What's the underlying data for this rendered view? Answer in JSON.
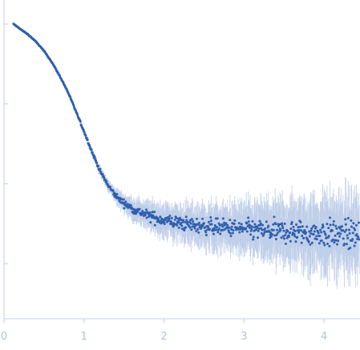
{
  "chart_data": {
    "type": "scatter",
    "title": "",
    "xlabel": "",
    "ylabel": "",
    "xlim": [
      0,
      4.45
    ],
    "y_scale": "log",
    "y_ticks_labeled": false,
    "x_ticks": [
      {
        "value": 0,
        "label": "0"
      },
      {
        "value": 1,
        "label": "1"
      },
      {
        "value": 2,
        "label": "2"
      },
      {
        "value": 3,
        "label": "3"
      },
      {
        "value": 4,
        "label": "4"
      }
    ],
    "y_tick_positions": [
      1,
      0.1,
      0.01,
      0.001
    ],
    "grid": false,
    "legend": "none",
    "marker_color": "#2f5fae",
    "error_bar_color": "#b7c8e6",
    "axis_color": "#c3cde0",
    "tick_label_color": "#b3c1db",
    "series": [
      {
        "points": [
          {
            "x": 0.12,
            "y": 1.0,
            "err": 0.015
          },
          {
            "x": 0.2,
            "y": 0.87,
            "err": 0.015
          },
          {
            "x": 0.3,
            "y": 0.74,
            "err": 0.015
          },
          {
            "x": 0.4,
            "y": 0.6,
            "err": 0.015
          },
          {
            "x": 0.5,
            "y": 0.46,
            "err": 0.015
          },
          {
            "x": 0.6,
            "y": 0.33,
            "err": 0.02
          },
          {
            "x": 0.7,
            "y": 0.22,
            "err": 0.02
          },
          {
            "x": 0.8,
            "y": 0.14,
            "err": 0.025
          },
          {
            "x": 0.9,
            "y": 0.08,
            "err": 0.03
          },
          {
            "x": 1.0,
            "y": 0.045,
            "err": 0.04
          },
          {
            "x": 1.1,
            "y": 0.025,
            "err": 0.05
          },
          {
            "x": 1.2,
            "y": 0.0145,
            "err": 0.06
          },
          {
            "x": 1.3,
            "y": 0.0095,
            "err": 0.08
          },
          {
            "x": 1.4,
            "y": 0.007,
            "err": 0.1
          },
          {
            "x": 1.5,
            "y": 0.0057,
            "err": 0.12
          },
          {
            "x": 1.6,
            "y": 0.0049,
            "err": 0.14
          },
          {
            "x": 1.7,
            "y": 0.0044,
            "err": 0.16
          },
          {
            "x": 1.8,
            "y": 0.004,
            "err": 0.18
          },
          {
            "x": 1.9,
            "y": 0.0037,
            "err": 0.2
          },
          {
            "x": 2.0,
            "y": 0.0035,
            "err": 0.22
          },
          {
            "x": 2.2,
            "y": 0.0032,
            "err": 0.24
          },
          {
            "x": 2.4,
            "y": 0.003,
            "err": 0.26
          },
          {
            "x": 2.6,
            "y": 0.0029,
            "err": 0.28
          },
          {
            "x": 2.8,
            "y": 0.0028,
            "err": 0.3
          },
          {
            "x": 3.0,
            "y": 0.0027,
            "err": 0.33
          },
          {
            "x": 3.2,
            "y": 0.0026,
            "err": 0.36
          },
          {
            "x": 3.4,
            "y": 0.0025,
            "err": 0.39
          },
          {
            "x": 3.6,
            "y": 0.0025,
            "err": 0.42
          },
          {
            "x": 3.8,
            "y": 0.0024,
            "err": 0.45
          },
          {
            "x": 4.0,
            "y": 0.0024,
            "err": 0.48
          },
          {
            "x": 4.2,
            "y": 0.0023,
            "err": 0.5
          },
          {
            "x": 4.4,
            "y": 0.0023,
            "err": 0.52
          }
        ]
      }
    ]
  }
}
